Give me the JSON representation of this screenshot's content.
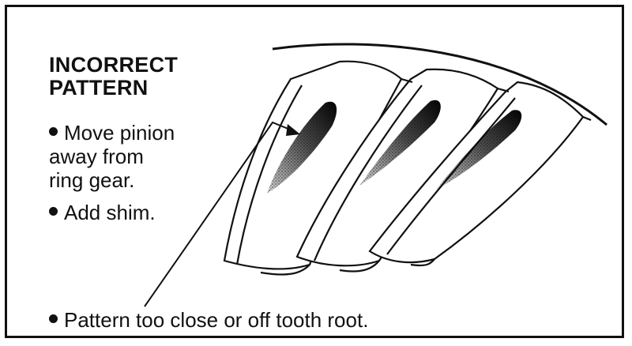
{
  "heading": {
    "line1": "INCORRECT",
    "line2": "PATTERN"
  },
  "instructions": [
    {
      "lines": [
        "Move pinion",
        "away from",
        "ring gear."
      ]
    },
    {
      "lines": [
        "Add shim."
      ]
    }
  ],
  "caption": "Pattern too close or off tooth root.",
  "icons": {
    "bullet": "bullet-dot",
    "arrow": "leader-arrow"
  },
  "colors": {
    "ink": "#111111",
    "background": "#ffffff"
  }
}
